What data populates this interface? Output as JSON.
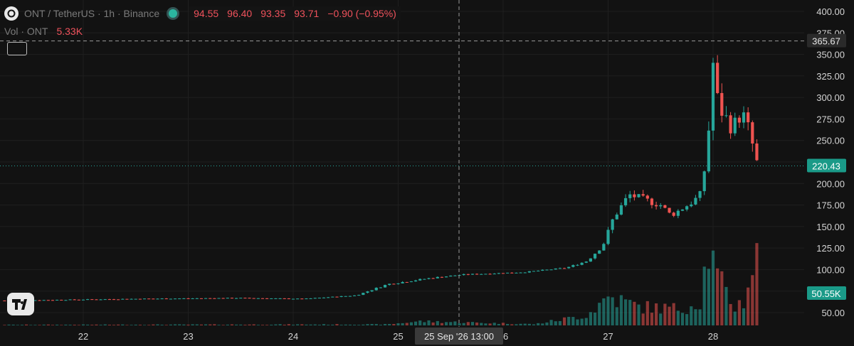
{
  "header": {
    "symbol_text": "ONT / TetherUS · 1h · Binance",
    "ohlc": [
      "94.55",
      "96.40",
      "93.35",
      "93.71",
      "−0.90 (−0.95%)"
    ]
  },
  "volume_label": {
    "name": "Vol · ONT",
    "value": "5.33K"
  },
  "crosshair": {
    "price_label": "365.67",
    "time_label": "25 Sep '26   13:00"
  },
  "badges": {
    "last_price": "220.43",
    "last_volume": "50.55K"
  },
  "colors": {
    "up": "#26a69a",
    "down": "#ef5350",
    "bg": "#121212"
  },
  "chart_data": {
    "type": "candlestick",
    "price_axis": {
      "ticks": [
        "400.00",
        "375.00",
        "350.00",
        "325.00",
        "300.00",
        "275.00",
        "250.00",
        "225.00",
        "200.00",
        "175.00",
        "150.00",
        "125.00",
        "100.00",
        "75.00",
        "50.00"
      ],
      "ylim": [
        25,
        412
      ]
    },
    "time_axis": {
      "labels": [
        {
          "text": "22",
          "day": 22
        },
        {
          "text": "23",
          "day": 23
        },
        {
          "text": "24",
          "day": 24
        },
        {
          "text": "25",
          "day": 25
        },
        {
          "text": "26",
          "day": 26
        },
        {
          "text": "27",
          "day": 27
        },
        {
          "text": "28",
          "day": 28
        }
      ]
    },
    "crosshair_price": 365.67,
    "last_price": 220.43,
    "series": [
      {
        "kind": "ohlc",
        "segments": [
          [
            21.25,
            64,
            0.4
          ],
          [
            22.5,
            66,
            0.5
          ],
          [
            23.5,
            67,
            0.4
          ],
          [
            24.1,
            66,
            0.3
          ],
          [
            24.6,
            70,
            0.6
          ],
          [
            24.9,
            83,
            1.2
          ],
          [
            25.3,
            90,
            1.0
          ],
          [
            25.6,
            94,
            0.8
          ],
          [
            26.2,
            97,
            0.6
          ],
          [
            26.6,
            102,
            0.8
          ],
          [
            26.8,
            110,
            1.5
          ],
          [
            26.95,
            128,
            3.0
          ],
          [
            27.05,
            160,
            5.0
          ],
          [
            27.2,
            187,
            6.0
          ],
          [
            27.5,
            175,
            5.0
          ],
          [
            27.6,
            163,
            4.0
          ],
          [
            27.8,
            178,
            4.0
          ],
          [
            27.88,
            188,
            5.0
          ],
          [
            27.95,
            240,
            12.0
          ],
          [
            27.99,
            350,
            16.0
          ],
          [
            28.05,
            290,
            14.0
          ],
          [
            28.18,
            265,
            12.0
          ],
          [
            28.28,
            282,
            10.0
          ],
          [
            28.35,
            258,
            14.0
          ],
          [
            28.42,
            222,
            10.0
          ]
        ]
      },
      {
        "kind": "volume",
        "profile": [
          [
            21.25,
            0.3
          ],
          [
            24.9,
            0.5
          ],
          [
            25.2,
            2.0
          ],
          [
            25.6,
            1.5
          ],
          [
            26.3,
            0.6
          ],
          [
            26.8,
            5.0
          ],
          [
            27.0,
            14.0
          ],
          [
            27.3,
            9.0
          ],
          [
            27.7,
            8.0
          ],
          [
            27.88,
            12.0
          ],
          [
            27.95,
            38.0
          ],
          [
            28.05,
            22.0
          ],
          [
            28.2,
            9.0
          ],
          [
            28.3,
            12.0
          ],
          [
            28.4,
            35.0
          ],
          [
            28.45,
            28.0
          ]
        ]
      }
    ]
  }
}
